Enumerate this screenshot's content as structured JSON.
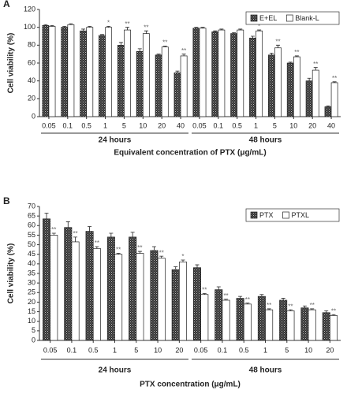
{
  "chart_data": [
    {
      "type": "bar",
      "panel": "A",
      "y_label": "Cell viability (%)",
      "x_label": "Equivalent concentration of PTX (μg/mL)",
      "categories": [
        "0.05",
        "0.1",
        "0.5",
        "1",
        "5",
        "10",
        "20",
        "40",
        "0.05",
        "0.1",
        "0.5",
        "1",
        "5",
        "10",
        "20",
        "40"
      ],
      "groups": [
        "24 hours",
        "48 hours"
      ],
      "ylim": [
        0,
        120
      ],
      "yticks": [
        0,
        20,
        40,
        60,
        80,
        100,
        120
      ],
      "legend": "upper right",
      "series": [
        {
          "name": "E+EL",
          "color": "#333333",
          "values": [
            102,
            100,
            96,
            91,
            80,
            73,
            69,
            49,
            99,
            95,
            93,
            88,
            69,
            60,
            40,
            11
          ],
          "errors": [
            1,
            1,
            2,
            1,
            3,
            3,
            1,
            2,
            1,
            1,
            1,
            2,
            2,
            1,
            3,
            1
          ],
          "annotations": [
            null,
            null,
            null,
            null,
            null,
            null,
            null,
            null,
            null,
            null,
            null,
            null,
            null,
            null,
            null,
            null
          ]
        },
        {
          "name": "Blank-L",
          "color": "#ffffff",
          "values": [
            101,
            103,
            100,
            100,
            97,
            93,
            78,
            68,
            99,
            97,
            97,
            96,
            77,
            67,
            52,
            38
          ],
          "errors": [
            1,
            1,
            1,
            1,
            3,
            3,
            1,
            2,
            1,
            1,
            1,
            1,
            3,
            1,
            3,
            1
          ],
          "annotations": [
            null,
            null,
            null,
            "*",
            "**",
            "**",
            "**",
            "**",
            null,
            null,
            null,
            "*",
            "**",
            "**",
            "**",
            "**"
          ]
        }
      ]
    },
    {
      "type": "bar",
      "panel": "B",
      "y_label": "Cell viability (%)",
      "x_label": "PTX concentration (μg/mL)",
      "categories": [
        "0.05",
        "0.1",
        "0.5",
        "1",
        "5",
        "10",
        "20",
        "0.05",
        "0.1",
        "0.5",
        "1",
        "5",
        "10",
        "20"
      ],
      "groups": [
        "24 hours",
        "48 hours"
      ],
      "ylim": [
        0,
        70
      ],
      "yticks": [
        0,
        5,
        10,
        15,
        20,
        25,
        30,
        35,
        40,
        45,
        50,
        55,
        60,
        65,
        70
      ],
      "legend": "upper right",
      "series": [
        {
          "name": "PTX",
          "color": "#333333",
          "values": [
            63.5,
            59,
            57,
            54,
            54,
            47,
            37,
            38,
            26.5,
            22,
            23,
            21,
            17,
            14.5
          ],
          "errors": [
            3,
            3,
            2.5,
            2,
            2.5,
            2,
            1.5,
            1.5,
            1.5,
            1,
            1,
            1,
            1,
            1
          ],
          "annotations": [
            null,
            null,
            null,
            null,
            null,
            null,
            null,
            null,
            null,
            null,
            null,
            null,
            null,
            null
          ]
        },
        {
          "name": "PTXL",
          "color": "#ffffff",
          "values": [
            55,
            51.5,
            48,
            45,
            45.5,
            43,
            41,
            24,
            21,
            19,
            16,
            15.5,
            16,
            13
          ],
          "errors": [
            1,
            2.5,
            1,
            0.5,
            1,
            1,
            1,
            0.5,
            0.5,
            0.5,
            0.5,
            0.5,
            0.5,
            0.5
          ],
          "annotations": [
            "**",
            "**",
            "**",
            "**",
            "**",
            "**",
            "*",
            "**",
            "**",
            "**",
            "**",
            "**",
            "**",
            "**"
          ]
        }
      ]
    }
  ]
}
